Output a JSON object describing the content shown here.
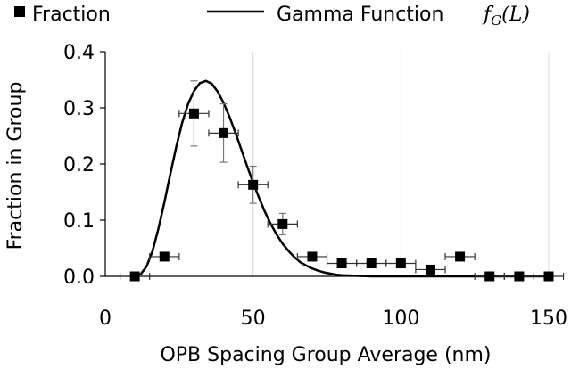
{
  "chart_data": {
    "type": "scatter",
    "title": "",
    "xlabel": "OPB Spacing Group Average (nm)",
    "ylabel": "Fraction in Group",
    "xlim": [
      0,
      150
    ],
    "ylim": [
      0,
      0.4
    ],
    "x_ticks": [
      "0",
      "50",
      "100",
      "150"
    ],
    "y_ticks": [
      "0.0",
      "0.1",
      "0.2",
      "0.3",
      "0.4"
    ],
    "grid": "vertical",
    "legend_position": "top",
    "series": [
      {
        "name": "Fraction",
        "marker": "square",
        "color": "#000000",
        "points": [
          {
            "x": 10,
            "y": 0.0,
            "xerr": 5,
            "yerr": 0
          },
          {
            "x": 20,
            "y": 0.035,
            "xerr": 5,
            "yerr": 0
          },
          {
            "x": 30,
            "y": 0.29,
            "xerr": 5,
            "yerr": 0.058
          },
          {
            "x": 40,
            "y": 0.255,
            "xerr": 5,
            "yerr": 0.052
          },
          {
            "x": 50,
            "y": 0.163,
            "xerr": 5,
            "yerr": 0.033
          },
          {
            "x": 60,
            "y": 0.093,
            "xerr": 5,
            "yerr": 0.019
          },
          {
            "x": 70,
            "y": 0.035,
            "xerr": 5,
            "yerr": 0
          },
          {
            "x": 80,
            "y": 0.023,
            "xerr": 5,
            "yerr": 0
          },
          {
            "x": 90,
            "y": 0.023,
            "xerr": 5,
            "yerr": 0
          },
          {
            "x": 100,
            "y": 0.023,
            "xerr": 5,
            "yerr": 0
          },
          {
            "x": 110,
            "y": 0.012,
            "xerr": 5,
            "yerr": 0
          },
          {
            "x": 120,
            "y": 0.035,
            "xerr": 5,
            "yerr": 0
          },
          {
            "x": 130,
            "y": 0.0,
            "xerr": 5,
            "yerr": 0
          },
          {
            "x": 140,
            "y": 0.0,
            "xerr": 5,
            "yerr": 0
          },
          {
            "x": 150,
            "y": 0.0,
            "xerr": 5,
            "yerr": 0
          }
        ]
      },
      {
        "name": "Gamma Function",
        "name_math": "f",
        "name_math_sub": "G",
        "name_math_arg": "(L)",
        "type": "line",
        "color": "#000000",
        "x": [
          10,
          12,
          14,
          16,
          18,
          20,
          22,
          24,
          26,
          28,
          30,
          32,
          34,
          36,
          38,
          40,
          42,
          44,
          46,
          48,
          50,
          52,
          54,
          56,
          58,
          60,
          62,
          64,
          66,
          68,
          70,
          72,
          74,
          76,
          78,
          80,
          85,
          90,
          95,
          100
        ],
        "y": [
          0.0,
          0.004,
          0.018,
          0.045,
          0.085,
          0.132,
          0.182,
          0.23,
          0.273,
          0.307,
          0.33,
          0.344,
          0.348,
          0.343,
          0.329,
          0.309,
          0.284,
          0.256,
          0.226,
          0.196,
          0.167,
          0.14,
          0.115,
          0.093,
          0.074,
          0.058,
          0.045,
          0.034,
          0.025,
          0.019,
          0.014,
          0.01,
          0.007,
          0.005,
          0.003,
          0.002,
          0.001,
          0.0,
          0.0,
          0.0
        ]
      }
    ]
  }
}
